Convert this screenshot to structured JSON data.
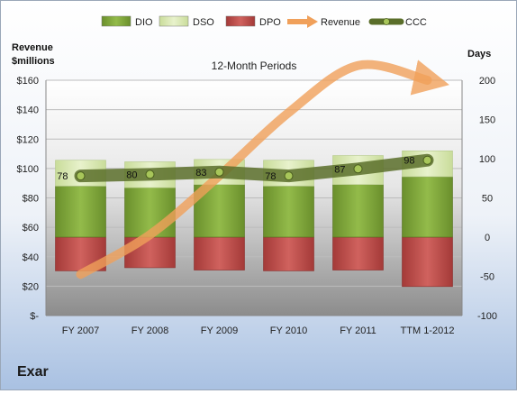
{
  "company": "Exar",
  "chart_data": {
    "type": "bar",
    "title": "12-Month Periods",
    "y_left_label_line1": "Revenue",
    "y_left_label_line2": "$millions",
    "y_right_label": "Days",
    "categories": [
      "FY 2007",
      "FY 2008",
      "FY 2009",
      "FY 2010",
      "FY 2011",
      "TTM 1-2012"
    ],
    "y_left_ticks": [
      "$-",
      "$20",
      "$40",
      "$60",
      "$80",
      "$100",
      "$120",
      "$140",
      "$160"
    ],
    "y_left_range": [
      0,
      160
    ],
    "y_right_ticks": [
      "-100",
      "-50",
      "0",
      "50",
      "100",
      "150",
      "200"
    ],
    "y_right_range": [
      -100,
      200
    ],
    "legend_position": "top",
    "series": [
      {
        "name": "DIO",
        "type": "bar",
        "axis": "right",
        "values": [
          65,
          63,
          67,
          65,
          67,
          77
        ],
        "color": "#7ea33a"
      },
      {
        "name": "DSO",
        "type": "bar",
        "axis": "right",
        "values": [
          33,
          33,
          32,
          33,
          37,
          33
        ],
        "color": "#d7e6b2"
      },
      {
        "name": "DPO",
        "type": "bar",
        "axis": "right",
        "values": [
          -43,
          -39,
          -42,
          -43,
          -42,
          -63
        ],
        "color": "#c0504d"
      },
      {
        "name": "Revenue",
        "type": "line",
        "axis": "left",
        "values": [
          28,
          55,
          95,
          138,
          170,
          160
        ],
        "color": "#f0a05a"
      },
      {
        "name": "CCC",
        "type": "line",
        "axis": "right",
        "values": [
          78,
          80,
          83,
          78,
          87,
          98
        ],
        "labels": [
          "78",
          "80",
          "83",
          "78",
          "87",
          "98"
        ],
        "color": "#5a6e2a"
      }
    ]
  }
}
